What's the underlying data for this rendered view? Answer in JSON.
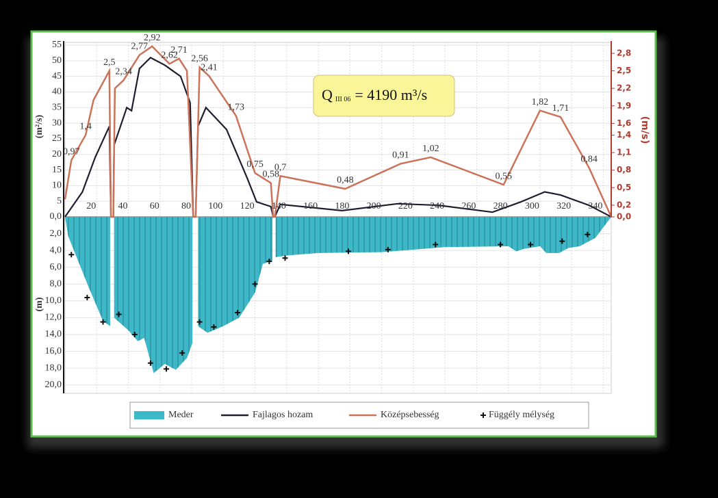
{
  "chart_data": [
    {
      "type": "line",
      "y_label": "(m²/s)",
      "y2_label": "(m/s)",
      "annotation": {
        "symbol": "Q",
        "subscript": "III 06",
        "text": "= 4190  m³/s"
      },
      "xlim": [
        0,
        345
      ],
      "xticks": [
        20,
        40,
        60,
        80,
        100,
        120,
        140,
        160,
        180,
        200,
        220,
        240,
        260,
        280,
        300,
        320,
        340
      ],
      "ylim": [
        0,
        55
      ],
      "yticks": [
        {
          "value": 0,
          "label": "0,0"
        },
        5,
        10,
        15,
        20,
        25,
        30,
        35,
        40,
        45,
        50,
        55
      ],
      "y2lim": [
        0,
        2.94
      ],
      "y2ticks": [
        {
          "value": 0,
          "label": "0,0"
        },
        {
          "value": 0.2,
          "label": "0,2"
        },
        {
          "value": 0.5,
          "label": "0,5"
        },
        {
          "value": 0.8,
          "label": "0,8"
        },
        {
          "value": 1.1,
          "label": "1,1"
        },
        {
          "value": 1.4,
          "label": "1,4"
        },
        {
          "value": 1.6,
          "label": "1,6"
        },
        {
          "value": 1.9,
          "label": "1,9"
        },
        {
          "value": 2.2,
          "label": "2,2"
        },
        {
          "value": 2.5,
          "label": "2,5"
        },
        {
          "value": 2.8,
          "label": "2,8"
        }
      ],
      "grid": true,
      "series": [
        {
          "name": "Fajlagos hozam",
          "color": "#1d1d2e",
          "x": [
            0,
            11,
            19,
            28,
            29,
            30.5,
            31,
            39,
            42,
            47,
            54,
            63,
            73,
            79,
            81,
            82.5,
            84,
            89,
            102,
            115,
            121,
            130,
            131.5,
            132.5,
            136,
            175,
            210,
            236,
            270,
            288,
            303,
            313,
            331,
            345
          ],
          "values": [
            0,
            8,
            19,
            29,
            0,
            0,
            23,
            35,
            34,
            47.5,
            51,
            48.6,
            45,
            36.6,
            0,
            0,
            29,
            35,
            28,
            12.5,
            4.8,
            3.3,
            0,
            0,
            4,
            2,
            4.2,
            3.7,
            1.5,
            4.8,
            8,
            7,
            3.7,
            0
          ]
        },
        {
          "name": "Középsebesség",
          "color": "#cc7259",
          "axis": "y2",
          "x": [
            0,
            4,
            13,
            18,
            28,
            29,
            30.5,
            31.5,
            37,
            47,
            55,
            66,
            72,
            77,
            81,
            82.5,
            85,
            91,
            108,
            120,
            130,
            131.5,
            132.5,
            136,
            177,
            212,
            231,
            277,
            300,
            313,
            331,
            345
          ],
          "values": [
            0.3,
            0.97,
            1.4,
            2.0,
            2.5,
            0,
            0,
            2.2,
            2.34,
            2.77,
            2.92,
            2.62,
            2.71,
            2.5,
            0,
            0,
            2.56,
            2.41,
            1.73,
            0.75,
            0.58,
            0,
            0,
            0.7,
            0.48,
            0.91,
            1.02,
            0.55,
            1.82,
            1.71,
            0.84,
            0
          ],
          "value_labels": [
            null,
            "0,97",
            "1,4",
            null,
            "2,5",
            null,
            null,
            null,
            "2,34",
            "2,77",
            "2,92",
            "2,62",
            "2,71",
            null,
            null,
            null,
            "2,56",
            "2,41",
            "1,73",
            "0,75",
            "0,58",
            null,
            null,
            "0,7",
            "0,48",
            "0,91",
            "1,02",
            "0,55",
            "1,82",
            "1,71",
            "0,84",
            null
          ]
        }
      ]
    },
    {
      "type": "area",
      "y_label": "(m)",
      "inverted": true,
      "xlim": [
        0,
        345
      ],
      "ylim": [
        0,
        21
      ],
      "yticks": [
        {
          "value": 2,
          "label": "2,0"
        },
        {
          "value": 4,
          "label": "4,0"
        },
        {
          "value": 6,
          "label": "6,0"
        },
        {
          "value": 8,
          "label": "8,0"
        },
        {
          "value": 10,
          "label": "10,0"
        },
        {
          "value": 12,
          "label": "12,0"
        },
        {
          "value": 14,
          "label": "14,0"
        },
        {
          "value": 16,
          "label": "16,0"
        },
        {
          "value": 18,
          "label": "18,0"
        },
        {
          "value": 20,
          "label": "20,0"
        }
      ],
      "grid": true,
      "series": [
        {
          "name": "Meder",
          "color": "#3cb8c8",
          "x": [
            0,
            2,
            15,
            24,
            28.5,
            null,
            31,
            40,
            46,
            50,
            56,
            63,
            70,
            77,
            80.5,
            null,
            84,
            90,
            100,
            110,
            120,
            125,
            131,
            null,
            133,
            140,
            160,
            200,
            240,
            280,
            285,
            290,
            300,
            304,
            312,
            318,
            325,
            335,
            345
          ],
          "values": [
            0,
            2.3,
            8.4,
            12.4,
            13,
            null,
            12,
            13.5,
            14.8,
            14.4,
            18.6,
            17.5,
            18.2,
            16.8,
            15,
            null,
            13,
            13.8,
            13,
            12,
            9,
            5.6,
            5.2,
            null,
            4.8,
            4.6,
            4.3,
            4.2,
            3.6,
            3.5,
            4.1,
            3.8,
            3.5,
            4.3,
            4.3,
            3.7,
            3.5,
            2.5,
            0
          ]
        },
        {
          "name": "Függély mélység",
          "type": "scatter",
          "marker": "plus",
          "color": "#111111",
          "x": [
            4,
            14,
            24,
            34,
            44,
            54,
            64,
            74,
            85,
            94,
            109,
            120,
            129,
            139,
            179,
            204,
            234,
            275,
            294,
            314,
            330
          ],
          "values": [
            4.5,
            9.6,
            12.5,
            11.6,
            14,
            17.4,
            18.1,
            16.2,
            12.5,
            13.1,
            11.4,
            8,
            5.3,
            4.9,
            4.1,
            3.9,
            3.3,
            3.3,
            3.3,
            2.9,
            2.1
          ]
        }
      ]
    }
  ]
}
